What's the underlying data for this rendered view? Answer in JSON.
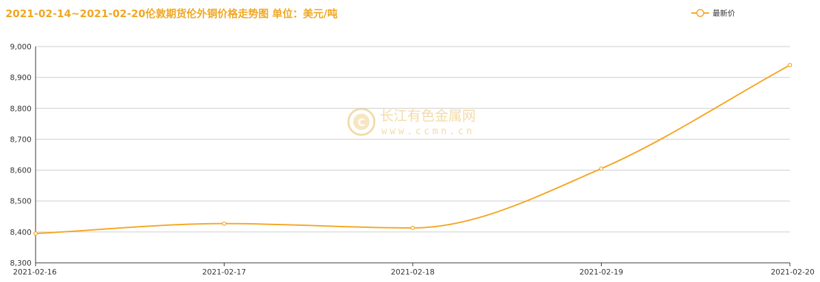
{
  "colors": {
    "series": "#f5a623",
    "grid": "#cccccc",
    "axis": "#333333",
    "title": "#f0a722",
    "watermark": "#f3dba8"
  },
  "chart_data": {
    "type": "line",
    "title": "2021-02-14~2021-02-20伦敦期货伦外铜价格走势图 单位：美元/吨",
    "xlabel": "",
    "ylabel": "",
    "x": [
      "2021-02-16",
      "2021-02-17",
      "2021-02-18",
      "2021-02-19",
      "2021-02-20"
    ],
    "series": [
      {
        "name": "最新价",
        "values": [
          8395,
          8427,
          8413,
          8605,
          8940
        ]
      }
    ],
    "ylim": [
      8300,
      9000
    ],
    "yticks": [
      8300,
      8400,
      8500,
      8600,
      8700,
      8800,
      8900,
      9000
    ],
    "ytick_labels": [
      "8,300",
      "8,400",
      "8,500",
      "8,600",
      "8,700",
      "8,800",
      "8,900",
      "9,000"
    ],
    "grid": true,
    "legend": "top-right",
    "smooth": true
  },
  "watermark": {
    "name": "长江有色金属网",
    "url": "www.ccmn.cn"
  }
}
